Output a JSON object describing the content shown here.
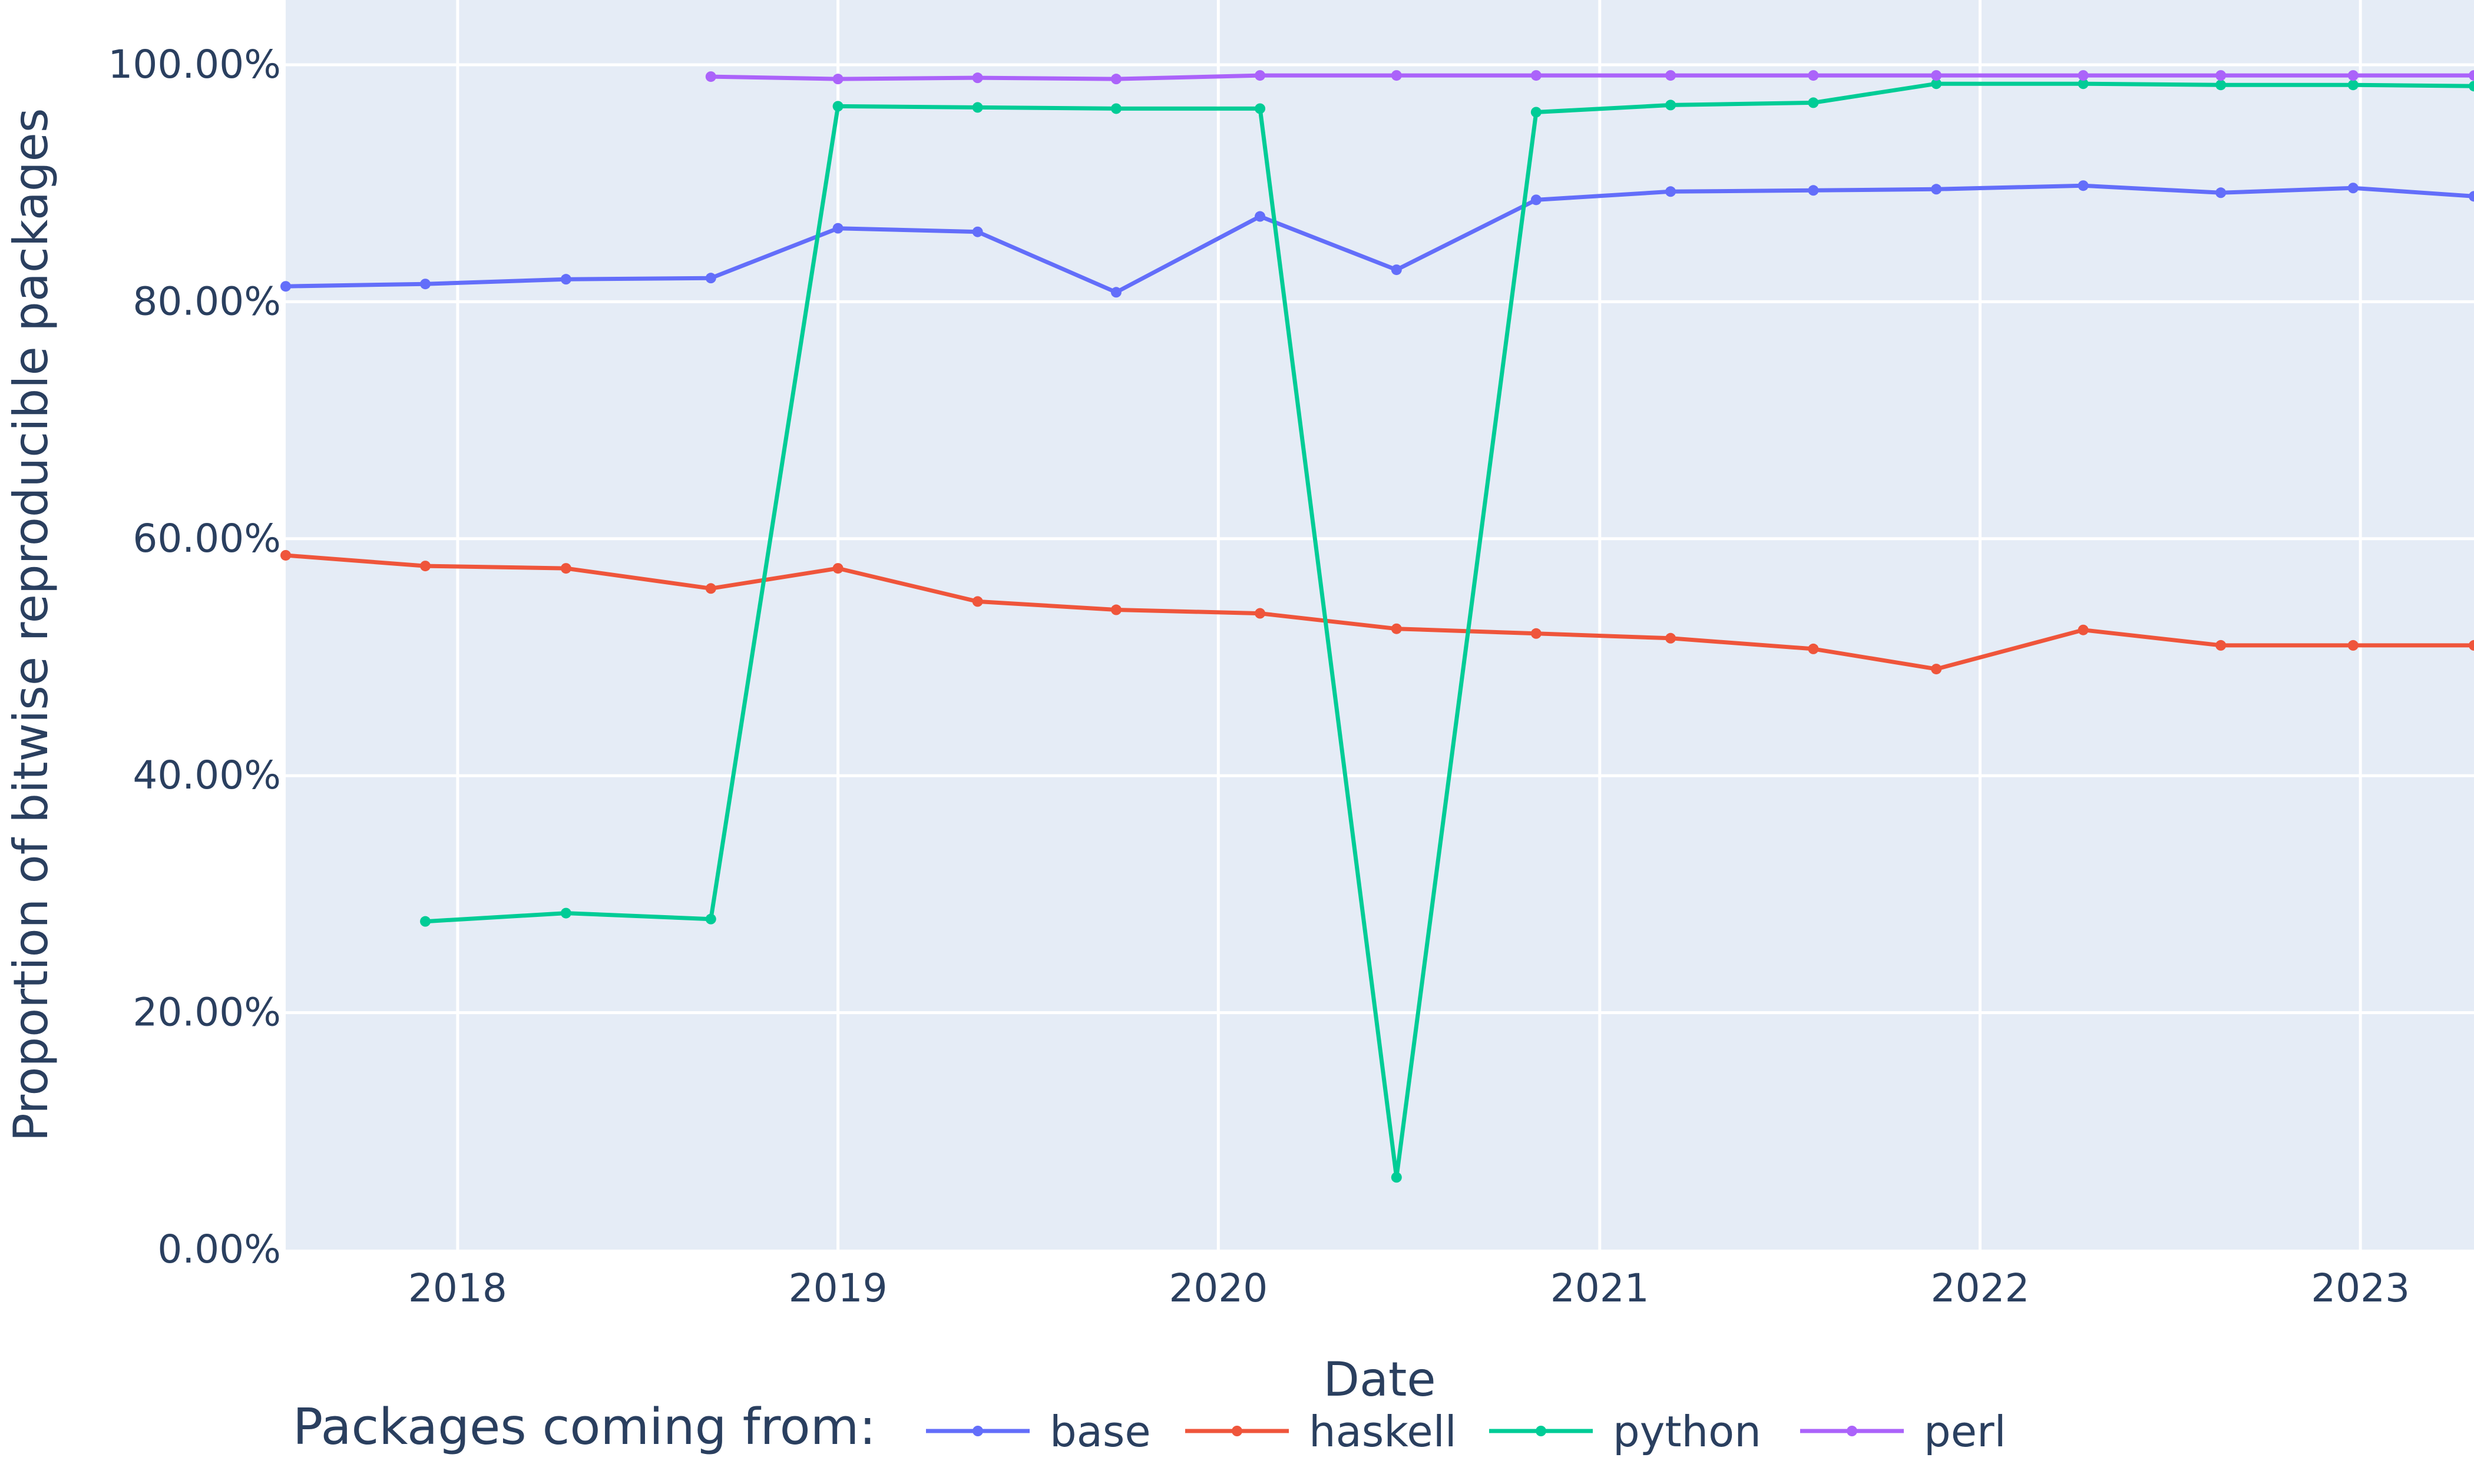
{
  "chart_data": {
    "type": "line",
    "title": "",
    "xlabel": "Date",
    "ylabel": "Proportion of bitwise reproducible packages",
    "x_tick_labels": [
      "2018",
      "2019",
      "2020",
      "2021",
      "2022",
      "2023"
    ],
    "y_tick_labels": [
      "0.00%",
      "20.00%",
      "40.00%",
      "60.00%",
      "80.00%",
      "100.00%"
    ],
    "ylim": [
      0,
      1.0
    ],
    "xlim": [
      "2017-07-20",
      "2023-04-20"
    ],
    "y_format": "percent",
    "grid": true,
    "legend": {
      "title": "Packages coming from:",
      "placement": "bottom"
    },
    "series": [
      {
        "name": "base",
        "color": "#636efa",
        "points": [
          {
            "x": "2017-07-20",
            "y": 0.813
          },
          {
            "x": "2017-12-01",
            "y": 0.815
          },
          {
            "x": "2018-04-15",
            "y": 0.819
          },
          {
            "x": "2018-09-01",
            "y": 0.82
          },
          {
            "x": "2019-01-01",
            "y": 0.862
          },
          {
            "x": "2019-05-15",
            "y": 0.859
          },
          {
            "x": "2019-09-25",
            "y": 0.808
          },
          {
            "x": "2020-02-10",
            "y": 0.872
          },
          {
            "x": "2020-06-20",
            "y": 0.827
          },
          {
            "x": "2020-11-01",
            "y": 0.886
          },
          {
            "x": "2021-03-10",
            "y": 0.893
          },
          {
            "x": "2021-07-25",
            "y": 0.894
          },
          {
            "x": "2021-11-20",
            "y": 0.895
          },
          {
            "x": "2022-04-10",
            "y": 0.898
          },
          {
            "x": "2022-08-20",
            "y": 0.892
          },
          {
            "x": "2022-12-25",
            "y": 0.896
          },
          {
            "x": "2023-04-20",
            "y": 0.889
          }
        ]
      },
      {
        "name": "haskell",
        "color": "#ef553b",
        "points": [
          {
            "x": "2017-07-20",
            "y": 0.586
          },
          {
            "x": "2017-12-01",
            "y": 0.577
          },
          {
            "x": "2018-04-15",
            "y": 0.575
          },
          {
            "x": "2018-09-01",
            "y": 0.558
          },
          {
            "x": "2019-01-01",
            "y": 0.575
          },
          {
            "x": "2019-05-15",
            "y": 0.547
          },
          {
            "x": "2019-09-25",
            "y": 0.54
          },
          {
            "x": "2020-02-10",
            "y": 0.537
          },
          {
            "x": "2020-06-20",
            "y": 0.524
          },
          {
            "x": "2020-11-01",
            "y": 0.52
          },
          {
            "x": "2021-03-10",
            "y": 0.516
          },
          {
            "x": "2021-07-25",
            "y": 0.507
          },
          {
            "x": "2021-11-20",
            "y": 0.49
          },
          {
            "x": "2022-04-10",
            "y": 0.523
          },
          {
            "x": "2022-08-20",
            "y": 0.51
          },
          {
            "x": "2022-12-25",
            "y": 0.51
          },
          {
            "x": "2023-04-20",
            "y": 0.51
          }
        ]
      },
      {
        "name": "python",
        "color": "#00cc96",
        "points": [
          {
            "x": "2017-12-01",
            "y": 0.277
          },
          {
            "x": "2018-04-15",
            "y": 0.284
          },
          {
            "x": "2018-09-01",
            "y": 0.279
          },
          {
            "x": "2019-01-01",
            "y": 0.965
          },
          {
            "x": "2019-05-15",
            "y": 0.964
          },
          {
            "x": "2019-09-25",
            "y": 0.963
          },
          {
            "x": "2020-02-10",
            "y": 0.963
          },
          {
            "x": "2020-06-20",
            "y": 0.061
          },
          {
            "x": "2020-11-01",
            "y": 0.96
          },
          {
            "x": "2021-03-10",
            "y": 0.966
          },
          {
            "x": "2021-07-25",
            "y": 0.968
          },
          {
            "x": "2021-11-20",
            "y": 0.984
          },
          {
            "x": "2022-04-10",
            "y": 0.984
          },
          {
            "x": "2022-08-20",
            "y": 0.983
          },
          {
            "x": "2022-12-25",
            "y": 0.983
          },
          {
            "x": "2023-04-20",
            "y": 0.982
          }
        ]
      },
      {
        "name": "perl",
        "color": "#ab63fa",
        "points": [
          {
            "x": "2018-09-01",
            "y": 0.99
          },
          {
            "x": "2019-01-01",
            "y": 0.988
          },
          {
            "x": "2019-05-15",
            "y": 0.989
          },
          {
            "x": "2019-09-25",
            "y": 0.988
          },
          {
            "x": "2020-02-10",
            "y": 0.991
          },
          {
            "x": "2020-06-20",
            "y": 0.991
          },
          {
            "x": "2020-11-01",
            "y": 0.991
          },
          {
            "x": "2021-03-10",
            "y": 0.991
          },
          {
            "x": "2021-07-25",
            "y": 0.991
          },
          {
            "x": "2021-11-20",
            "y": 0.991
          },
          {
            "x": "2022-04-10",
            "y": 0.991
          },
          {
            "x": "2022-08-20",
            "y": 0.991
          },
          {
            "x": "2022-12-25",
            "y": 0.991
          },
          {
            "x": "2023-04-20",
            "y": 0.991
          }
        ]
      }
    ]
  }
}
